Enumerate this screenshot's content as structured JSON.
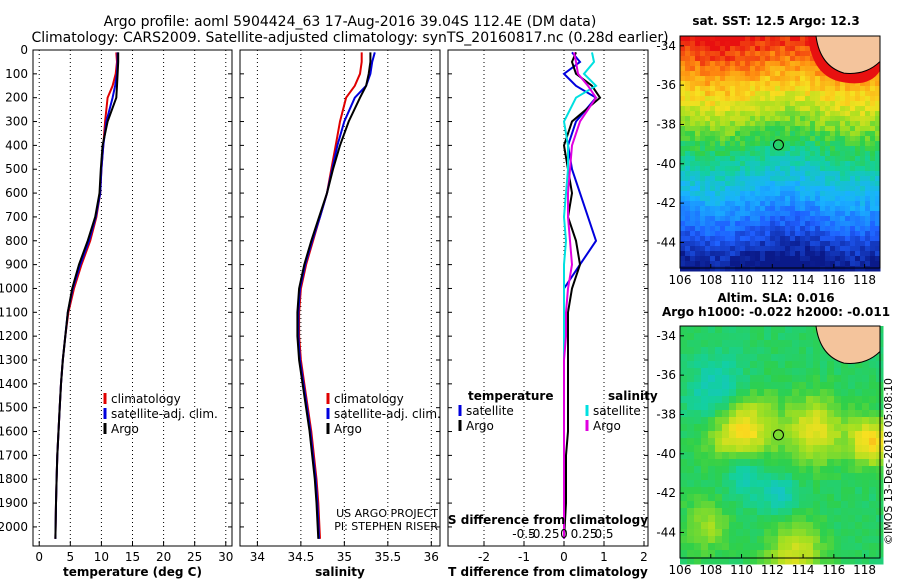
{
  "header": {
    "line1": "Argo profile: aoml 5904424_63 17-Aug-2016 39.04S 112.4E (DM data)",
    "line2": "Climatology: CARS2009. Satellite-adjusted climatology: synTS_20160817.nc (0.28d earlier)"
  },
  "colors": {
    "climatology": "#e00000",
    "satellite": "#0000dd",
    "argo": "#000000",
    "satellite_salinity": "#00e0e0",
    "argo_salinity": "#e000e0"
  },
  "chart_data": [
    {
      "type": "line",
      "panel": "temperature",
      "xlabel": "temperature (deg C)",
      "ylabel": "",
      "xlim": [
        -1,
        31
      ],
      "ylim": [
        2080,
        0
      ],
      "xticks": [
        "0",
        "5",
        "10",
        "15",
        "20",
        "25",
        "30"
      ],
      "yticks": [
        "0",
        "100",
        "200",
        "300",
        "400",
        "500",
        "600",
        "700",
        "800",
        "900",
        "1000",
        "1100",
        "1200",
        "1300",
        "1400",
        "1500",
        "1600",
        "1700",
        "1800",
        "1900",
        "2000"
      ],
      "grid": true,
      "legend_position": "lower-right",
      "series": [
        {
          "name": "climatology",
          "color": "#e00000",
          "x": [
            12.4,
            12.5,
            12.3,
            11.8,
            11.0,
            10.6,
            10.3,
            10.0,
            9.8,
            9.2,
            8.2,
            6.8,
            5.6,
            4.7,
            4.2,
            3.8,
            3.5,
            3.3,
            3.1,
            2.9,
            2.8,
            2.7,
            2.6
          ],
          "y": [
            10,
            50,
            100,
            150,
            200,
            300,
            400,
            500,
            600,
            700,
            800,
            900,
            1000,
            1100,
            1200,
            1300,
            1400,
            1500,
            1600,
            1700,
            1800,
            1900,
            2050
          ]
        },
        {
          "name": "satellite-adj. clim.",
          "color": "#0000dd",
          "x": [
            12.6,
            12.6,
            12.5,
            12.2,
            11.8,
            10.8,
            10.3,
            10.0,
            9.8,
            9.1,
            8.0,
            6.6,
            5.4,
            4.6,
            4.2,
            3.8,
            3.5,
            3.3,
            3.1,
            2.9,
            2.8,
            2.7,
            2.6
          ],
          "y": [
            10,
            50,
            100,
            150,
            200,
            300,
            400,
            500,
            600,
            700,
            800,
            900,
            1000,
            1100,
            1200,
            1300,
            1400,
            1500,
            1600,
            1700,
            1800,
            1900,
            2050
          ]
        },
        {
          "name": "Argo",
          "color": "#000000",
          "x": [
            12.7,
            12.7,
            12.6,
            12.5,
            12.4,
            11.0,
            10.2,
            9.9,
            9.7,
            9.0,
            7.8,
            6.4,
            5.3,
            4.6,
            4.2,
            3.8,
            3.5,
            3.3,
            3.1,
            2.9,
            2.8,
            2.7,
            2.6
          ],
          "y": [
            10,
            50,
            100,
            150,
            200,
            300,
            400,
            500,
            600,
            700,
            800,
            900,
            1000,
            1100,
            1200,
            1300,
            1400,
            1500,
            1600,
            1700,
            1800,
            1900,
            2050
          ]
        }
      ]
    },
    {
      "type": "line",
      "panel": "salinity",
      "xlabel": "salinity",
      "ylabel": "",
      "xlim": [
        33.8,
        36.1
      ],
      "ylim": [
        2080,
        0
      ],
      "xticks": [
        "34",
        "34.5",
        "35",
        "35.5",
        "36"
      ],
      "grid": true,
      "legend_position": "lower-right",
      "annotation": [
        "US ARGO PROJECT",
        "PI: STEPHEN RISER"
      ],
      "series": [
        {
          "name": "climatology",
          "color": "#e00000",
          "x": [
            35.2,
            35.2,
            35.18,
            35.12,
            35.02,
            34.95,
            34.9,
            34.85,
            34.8,
            34.72,
            34.64,
            34.56,
            34.5,
            34.48,
            34.48,
            34.5,
            34.54,
            34.58,
            34.62,
            34.65,
            34.68,
            34.7,
            34.72
          ],
          "y": [
            10,
            50,
            100,
            150,
            200,
            300,
            400,
            500,
            600,
            700,
            800,
            900,
            1000,
            1100,
            1200,
            1300,
            1400,
            1500,
            1600,
            1700,
            1800,
            1900,
            2050
          ]
        },
        {
          "name": "satellite-adj. clim.",
          "color": "#0000dd",
          "x": [
            35.35,
            35.32,
            35.3,
            35.25,
            35.12,
            35.0,
            34.92,
            34.86,
            34.8,
            34.72,
            34.63,
            34.55,
            34.49,
            34.47,
            34.47,
            34.49,
            34.53,
            34.57,
            34.61,
            34.64,
            34.67,
            34.69,
            34.71
          ],
          "y": [
            10,
            50,
            100,
            150,
            200,
            300,
            400,
            500,
            600,
            700,
            800,
            900,
            1000,
            1100,
            1200,
            1300,
            1400,
            1500,
            1600,
            1700,
            1800,
            1900,
            2050
          ]
        },
        {
          "name": "Argo",
          "color": "#000000",
          "x": [
            35.3,
            35.3,
            35.28,
            35.25,
            35.18,
            35.05,
            34.95,
            34.87,
            34.8,
            34.71,
            34.62,
            34.54,
            34.48,
            34.46,
            34.46,
            34.48,
            34.52,
            34.56,
            34.6,
            34.63,
            34.66,
            34.68,
            34.7
          ],
          "y": [
            10,
            50,
            100,
            150,
            200,
            300,
            400,
            500,
            600,
            700,
            800,
            900,
            1000,
            1100,
            1200,
            1300,
            1400,
            1500,
            1600,
            1700,
            1800,
            1900,
            2050
          ]
        }
      ]
    },
    {
      "type": "line",
      "panel": "difference",
      "xlabel": "T difference from climatology",
      "secondary_xlabel": "S difference from climatology",
      "ylabel": "",
      "xlim": [
        -2.9,
        2.1
      ],
      "ylim": [
        2080,
        0
      ],
      "xticks": [
        "-2",
        "-1",
        "0",
        "1",
        "2"
      ],
      "secondary_xticks": [
        "-0.5",
        "-0.25",
        "0",
        "0.25",
        "0.5"
      ],
      "grid": true,
      "legend_temperature": {
        "title": "temperature",
        "items": [
          "satellite",
          "Argo"
        ]
      },
      "legend_salinity": {
        "title": "salinity",
        "items": [
          "satellite",
          "Argo"
        ]
      },
      "series": [
        {
          "name": "satellite",
          "group": "temperature",
          "color": "#0000dd",
          "x": [
            0.2,
            0.4,
            0.0,
            0.3,
            0.8,
            0.3,
            0.1,
            0.2,
            0.4,
            0.6,
            0.8,
            0.4,
            0.0,
            0.0,
            0.0,
            0.0,
            0.0,
            0.0,
            0.0,
            0.0,
            0.0,
            0.0,
            0.0
          ],
          "y": [
            10,
            50,
            100,
            150,
            200,
            300,
            400,
            500,
            600,
            700,
            800,
            900,
            1000,
            1100,
            1200,
            1300,
            1400,
            1500,
            1600,
            1700,
            1800,
            1900,
            2050
          ]
        },
        {
          "name": "Argo",
          "group": "temperature",
          "color": "#000000",
          "x": [
            0.3,
            0.2,
            0.3,
            0.7,
            0.9,
            0.2,
            0.0,
            0.1,
            0.2,
            0.1,
            0.3,
            0.4,
            0.2,
            0.1,
            0.1,
            0.1,
            0.1,
            0.1,
            0.1,
            0.05,
            0.05,
            0.05,
            0.0
          ],
          "y": [
            10,
            50,
            100,
            150,
            200,
            300,
            400,
            500,
            600,
            700,
            800,
            900,
            1000,
            1100,
            1200,
            1300,
            1400,
            1500,
            1600,
            1700,
            1800,
            1900,
            2050
          ]
        },
        {
          "name": "satellite",
          "group": "salinity",
          "color": "#00e0e0",
          "x": [
            0.7,
            0.75,
            0.5,
            0.8,
            0.3,
            0.0,
            0.1,
            0.1,
            0.05,
            0.0,
            0.05,
            0.0,
            0.0,
            0.0,
            0.0,
            0.0,
            0.0,
            0.0,
            0.0,
            0.0,
            0.0,
            0.0,
            0.0
          ],
          "y": [
            10,
            50,
            100,
            150,
            200,
            300,
            400,
            500,
            600,
            700,
            800,
            900,
            1000,
            1100,
            1200,
            1300,
            1400,
            1500,
            1600,
            1700,
            1800,
            1900,
            2050
          ]
        },
        {
          "name": "Argo",
          "group": "salinity",
          "color": "#e000e0",
          "x": [
            0.25,
            0.3,
            0.35,
            0.6,
            0.8,
            0.4,
            0.2,
            0.15,
            0.1,
            0.1,
            0.15,
            0.2,
            0.1,
            0.05,
            0.05,
            0.0,
            0.0,
            0.0,
            0.0,
            0.0,
            0.0,
            0.0,
            0.0
          ],
          "y": [
            10,
            50,
            100,
            150,
            200,
            300,
            400,
            500,
            600,
            700,
            800,
            900,
            1000,
            1100,
            1200,
            1300,
            1400,
            1500,
            1600,
            1700,
            1800,
            1900,
            2050
          ]
        }
      ]
    },
    {
      "type": "heatmap",
      "panel": "sst-map",
      "title": "sat. SST: 12.5 Argo: 12.3",
      "xticks": [
        "106",
        "108",
        "110",
        "112",
        "114",
        "116",
        "118"
      ],
      "yticks": [
        "-34",
        "-36",
        "-38",
        "-40",
        "-42",
        "-44"
      ],
      "xlim": [
        106,
        119
      ],
      "ylim": [
        -45.3,
        -33.5
      ],
      "marker": {
        "lon": 112.4,
        "lat": -39.04
      }
    },
    {
      "type": "heatmap",
      "panel": "sla-map",
      "title": "Altim. SLA: 0.016",
      "subtitle": "Argo h1000: -0.022 h2000: -0.011",
      "xticks": [
        "106",
        "108",
        "110",
        "112",
        "114",
        "116",
        "118"
      ],
      "yticks": [
        "-34",
        "-36",
        "-38",
        "-40",
        "-42",
        "-44"
      ],
      "xlim": [
        106,
        119
      ],
      "ylim": [
        -45.3,
        -33.5
      ],
      "marker": {
        "lon": 112.4,
        "lat": -39.04
      }
    }
  ],
  "footer": {
    "watermark": "©IMOS 13-Dec-2018 05:08:10"
  }
}
